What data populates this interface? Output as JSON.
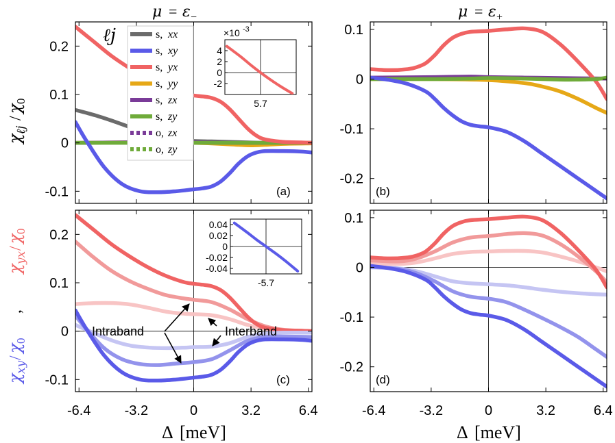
{
  "chart_data": [
    {
      "panel": "a",
      "type": "line",
      "title": "μ = ε₋",
      "panel_label": "(a)",
      "ylabel": "χℓj/χ0",
      "xlim": [
        -6.6,
        6.6
      ],
      "ylim": [
        -0.125,
        0.25
      ],
      "xticks": [
        "-6.4",
        "-3.2",
        "0",
        "3.2",
        "6.4"
      ],
      "xtick_values": [
        -6.4,
        -3.2,
        0,
        3.2,
        6.4
      ],
      "yticks": [
        "0.2",
        "0.1",
        "0",
        "-0.1"
      ],
      "ytick_values": [
        0.2,
        0.1,
        0,
        -0.1
      ],
      "legend_title": "ℓj",
      "legend": [
        {
          "name": "s, xx",
          "prefix": "s,",
          "suffix": "xx",
          "color": "#6b6b6b",
          "dash": false
        },
        {
          "name": "s, xy",
          "prefix": "s,",
          "suffix": "xy",
          "color": "#5a5ae8",
          "dash": false
        },
        {
          "name": "s, yx",
          "prefix": "s,",
          "suffix": "yx",
          "color": "#f06363",
          "dash": false
        },
        {
          "name": "s, yy",
          "prefix": "s,",
          "suffix": "yy",
          "color": "#e6a817",
          "dash": false
        },
        {
          "name": "s, zx",
          "prefix": "s,",
          "suffix": "zx",
          "color": "#7a3b98",
          "dash": false
        },
        {
          "name": "s, zy",
          "prefix": "s,",
          "suffix": "zy",
          "color": "#6fab3a",
          "dash": false
        },
        {
          "name": "o, zx",
          "prefix": "o,",
          "suffix": "zx",
          "color": "#7a3b98",
          "dash": true
        },
        {
          "name": "o, zy",
          "prefix": "o,",
          "suffix": "zy",
          "color": "#6fab3a",
          "dash": true
        }
      ],
      "series": [
        {
          "name": "s, xx",
          "color": "#6b6b6b",
          "x": [
            -6.6,
            -5.5,
            -4.5,
            -3.5,
            -2.5,
            -1.5,
            -0.5,
            0,
            1,
            2,
            3,
            4,
            5,
            6.6
          ],
          "y": [
            0.068,
            0.057,
            0.045,
            0.032,
            0.021,
            0.012,
            0.006,
            0.004,
            0.003,
            0.002,
            0.001,
            0.0,
            0.0,
            0.0
          ]
        },
        {
          "name": "s, yy",
          "color": "#e6a817",
          "x": [
            -6.6,
            -4,
            -2,
            0,
            1.5,
            2.5,
            3.2,
            4,
            5,
            6.6
          ],
          "y": [
            0.0,
            0.001,
            0.001,
            0.0,
            -0.002,
            -0.004,
            -0.005,
            -0.004,
            -0.002,
            -0.001
          ]
        },
        {
          "name": "s, zx",
          "color": "#7a3b98",
          "x": [
            -6.6,
            -4,
            -2,
            0,
            2,
            4,
            6.6
          ],
          "y": [
            0.0,
            0.001,
            0.002,
            0.001,
            0.0,
            0.0,
            0.0
          ]
        },
        {
          "name": "s, zy",
          "color": "#6fab3a",
          "x": [
            -6.6,
            -4,
            -2,
            0,
            2,
            4,
            6.6
          ],
          "y": [
            0.0,
            0.0,
            0.0,
            0.0,
            0.0,
            0.0,
            0.0
          ]
        },
        {
          "name": "s, yx",
          "color": "#f06363",
          "x": [
            -6.6,
            -5.6,
            -4.6,
            -3.6,
            -2.6,
            -1.6,
            -0.6,
            0,
            0.5,
            1,
            1.5,
            2,
            2.5,
            3,
            3.5,
            4,
            5,
            6,
            6.6
          ],
          "y": [
            0.24,
            0.21,
            0.18,
            0.155,
            0.133,
            0.115,
            0.102,
            0.098,
            0.096,
            0.093,
            0.085,
            0.07,
            0.05,
            0.03,
            0.015,
            0.007,
            0.002,
            0.001,
            0.0
          ]
        },
        {
          "name": "s, xy",
          "color": "#5a5ae8",
          "x": [
            -6.6,
            -6,
            -5,
            -4,
            -3,
            -2,
            -1,
            0,
            0.5,
            1,
            1.5,
            2,
            2.5,
            3,
            3.5,
            4,
            5,
            6,
            6.6
          ],
          "y": [
            0.043,
            0.005,
            -0.05,
            -0.085,
            -0.1,
            -0.102,
            -0.1,
            -0.096,
            -0.094,
            -0.09,
            -0.08,
            -0.063,
            -0.043,
            -0.028,
            -0.02,
            -0.017,
            -0.017,
            -0.018,
            -0.02
          ]
        }
      ],
      "inset": {
        "ytick_labels": [
          "4",
          "2",
          "0",
          "-2"
        ],
        "ytick_values": [
          4,
          2,
          0,
          -2
        ],
        "xtick_label": "5.7",
        "exponent": "×10",
        "exponent_power": "-3",
        "xlim": [
          5.52,
          5.88
        ],
        "ylim": [
          -4,
          6
        ],
        "x": [
          5.53,
          5.6,
          5.65,
          5.7,
          5.75,
          5.8,
          5.86
        ],
        "y": [
          4.8,
          2.9,
          1.4,
          0.0,
          -1.3,
          -2.5,
          -3.8
        ]
      }
    },
    {
      "panel": "b",
      "type": "line",
      "title": "μ = ε₊",
      "panel_label": "(b)",
      "xlim": [
        -6.6,
        6.6
      ],
      "ylim": [
        -0.25,
        0.115
      ],
      "xticks": [
        "-6.4",
        "-3.2",
        "0",
        "3.2",
        "6.4"
      ],
      "xtick_values": [
        -6.4,
        -3.2,
        0,
        3.2,
        6.4
      ],
      "yticks": [
        "0.1",
        "0",
        "-0.1",
        "-0.2"
      ],
      "ytick_values": [
        0.1,
        0,
        -0.1,
        -0.2
      ],
      "series": [
        {
          "name": "s, yy",
          "color": "#e6a817",
          "x": [
            -6.6,
            -3,
            0,
            2,
            3,
            4,
            5,
            6,
            6.6
          ],
          "y": [
            0.0,
            0.0,
            -0.002,
            -0.008,
            -0.015,
            -0.025,
            -0.04,
            -0.058,
            -0.068
          ]
        },
        {
          "name": "s, zx",
          "color": "#7a3b98",
          "x": [
            -6.6,
            -3,
            -1,
            0,
            2,
            4,
            6.6
          ],
          "y": [
            0.003,
            0.004,
            0.005,
            0.004,
            0.003,
            0.002,
            0.001
          ]
        },
        {
          "name": "s, yx",
          "color": "#f06363",
          "x": [
            -6.6,
            -5.5,
            -4.5,
            -4,
            -3.5,
            -3,
            -2.5,
            -2,
            -1.5,
            -1,
            0,
            1,
            2,
            3,
            4,
            5,
            6,
            6.6
          ],
          "y": [
            0.02,
            0.018,
            0.02,
            0.024,
            0.032,
            0.048,
            0.068,
            0.083,
            0.091,
            0.095,
            0.097,
            0.1,
            0.102,
            0.095,
            0.07,
            0.035,
            -0.005,
            -0.04
          ]
        },
        {
          "name": "s, zy",
          "color": "#6fab3a",
          "x": [
            -6.6,
            -3,
            -1,
            0,
            2,
            4,
            5,
            6,
            6.6
          ],
          "y": [
            0.0,
            0.0,
            0.001,
            0.002,
            0.001,
            -0.001,
            -0.001,
            0.0,
            0.003
          ]
        },
        {
          "name": "s, xy",
          "color": "#5a5ae8",
          "x": [
            -6.6,
            -5.5,
            -4.5,
            -3.5,
            -3,
            -2.5,
            -2,
            -1.5,
            -1,
            -0.5,
            0,
            1,
            2,
            3,
            4,
            5,
            6,
            6.6
          ],
          "y": [
            0.003,
            -0.002,
            -0.01,
            -0.025,
            -0.04,
            -0.058,
            -0.073,
            -0.085,
            -0.092,
            -0.095,
            -0.097,
            -0.106,
            -0.125,
            -0.15,
            -0.175,
            -0.2,
            -0.225,
            -0.24
          ]
        }
      ]
    },
    {
      "panel": "c",
      "type": "line",
      "panel_label": "(c)",
      "ylabel_red": "χyx/χ0",
      "ylabel_sep": ",",
      "ylabel_blue": "χxy/χ0",
      "xlabel": "Δ [meV]",
      "xlim": [
        -6.6,
        6.6
      ],
      "ylim": [
        -0.125,
        0.25
      ],
      "xticks": [
        "-6.4",
        "-3.2",
        "0",
        "3.2",
        "6.4"
      ],
      "xtick_values": [
        -6.4,
        -3.2,
        0,
        3.2,
        6.4
      ],
      "yticks": [
        "0.2",
        "0.1",
        "0",
        "-0.1"
      ],
      "ytick_values": [
        0.2,
        0.1,
        0,
        -0.1
      ],
      "annotations": [
        "Intraband",
        "Interband"
      ],
      "series": [
        {
          "name": "χyx interband",
          "color": "#f8c4c4",
          "x": [
            -6.6,
            -5.5,
            -4.5,
            -3.5,
            -2.5,
            -1.5,
            -0.5,
            0,
            1,
            2,
            3,
            4,
            5,
            6.6
          ],
          "y": [
            0.056,
            0.058,
            0.058,
            0.055,
            0.048,
            0.04,
            0.036,
            0.035,
            0.033,
            0.025,
            0.013,
            0.005,
            0.001,
            0.0
          ]
        },
        {
          "name": "χyx intraband",
          "color": "#f19a9a",
          "x": [
            -6.6,
            -5.6,
            -4.6,
            -3.6,
            -2.6,
            -1.6,
            -0.6,
            0,
            1,
            2,
            3,
            4,
            5,
            6.6
          ],
          "y": [
            0.185,
            0.153,
            0.125,
            0.104,
            0.088,
            0.075,
            0.068,
            0.065,
            0.06,
            0.045,
            0.025,
            0.01,
            0.003,
            0.0
          ]
        },
        {
          "name": "χyx total",
          "color": "#f06363",
          "x": [
            -6.6,
            -5.6,
            -4.6,
            -3.6,
            -2.6,
            -1.6,
            -0.6,
            0,
            0.5,
            1,
            1.5,
            2,
            2.5,
            3,
            3.5,
            4,
            5,
            6,
            6.6
          ],
          "y": [
            0.24,
            0.21,
            0.18,
            0.155,
            0.133,
            0.115,
            0.102,
            0.098,
            0.096,
            0.093,
            0.085,
            0.07,
            0.05,
            0.03,
            0.015,
            0.007,
            0.002,
            0.001,
            0.0
          ]
        },
        {
          "name": "χxy interband",
          "color": "#c5c5f3",
          "x": [
            -6.6,
            -5.5,
            -4.5,
            -3.5,
            -2.5,
            -1.5,
            -0.5,
            0,
            1,
            2,
            3,
            4,
            5,
            6.6
          ],
          "y": [
            0.013,
            -0.005,
            -0.02,
            -0.03,
            -0.034,
            -0.035,
            -0.034,
            -0.033,
            -0.032,
            -0.025,
            -0.012,
            -0.005,
            -0.003,
            -0.003
          ]
        },
        {
          "name": "χxy intraband",
          "color": "#9393ec",
          "x": [
            -6.6,
            -6,
            -5,
            -4,
            -3,
            -2,
            -1,
            0,
            1,
            2,
            3,
            4,
            5,
            6.6
          ],
          "y": [
            0.032,
            0.005,
            -0.035,
            -0.058,
            -0.068,
            -0.07,
            -0.067,
            -0.064,
            -0.058,
            -0.04,
            -0.02,
            -0.012,
            -0.011,
            -0.012
          ]
        },
        {
          "name": "χxy total",
          "color": "#5a5ae8",
          "x": [
            -6.6,
            -6,
            -5,
            -4,
            -3,
            -2,
            -1,
            0,
            0.5,
            1,
            1.5,
            2,
            2.5,
            3,
            3.5,
            4,
            5,
            6,
            6.6
          ],
          "y": [
            0.043,
            0.005,
            -0.05,
            -0.085,
            -0.1,
            -0.102,
            -0.1,
            -0.096,
            -0.094,
            -0.09,
            -0.08,
            -0.063,
            -0.043,
            -0.028,
            -0.02,
            -0.017,
            -0.017,
            -0.018,
            -0.02
          ]
        }
      ],
      "inset": {
        "ytick_labels": [
          "0.04",
          "0.02",
          "0",
          "-0.02",
          "-0.04"
        ],
        "ytick_values": [
          0.04,
          0.02,
          0,
          -0.02,
          -0.04
        ],
        "xtick_label": "-5.7",
        "xlim": [
          -5.88,
          -5.52
        ],
        "ylim": [
          -0.05,
          0.05
        ],
        "x": [
          -5.86,
          -5.8,
          -5.75,
          -5.7,
          -5.65,
          -5.6,
          -5.54
        ],
        "y": [
          0.043,
          0.027,
          0.013,
          0.0,
          -0.013,
          -0.027,
          -0.045
        ]
      }
    },
    {
      "panel": "d",
      "type": "line",
      "panel_label": "(d)",
      "xlabel": "Δ [meV]",
      "xlim": [
        -6.6,
        6.6
      ],
      "ylim": [
        -0.25,
        0.115
      ],
      "xticks": [
        "-6.4",
        "-3.2",
        "0",
        "3.2",
        "6.4"
      ],
      "xtick_values": [
        -6.4,
        -3.2,
        0,
        3.2,
        6.4
      ],
      "yticks": [
        "0.1",
        "0",
        "-0.1",
        "-0.2"
      ],
      "ytick_values": [
        0.1,
        0,
        -0.1,
        -0.2
      ],
      "series": [
        {
          "name": "χyx interband",
          "color": "#f8c4c4",
          "x": [
            -6.6,
            -5,
            -4,
            -3,
            -2,
            -1,
            0,
            1,
            2,
            3,
            4,
            5,
            6,
            6.6
          ],
          "y": [
            0.008,
            0.007,
            0.01,
            0.018,
            0.027,
            0.031,
            0.032,
            0.033,
            0.033,
            0.03,
            0.022,
            0.012,
            0.0,
            -0.008
          ]
        },
        {
          "name": "χyx intraband",
          "color": "#f19a9a",
          "x": [
            -6.6,
            -5,
            -4,
            -3,
            -2,
            -1,
            0,
            1,
            2,
            3,
            4,
            5,
            6,
            6.6
          ],
          "y": [
            0.014,
            0.012,
            0.018,
            0.032,
            0.05,
            0.06,
            0.063,
            0.067,
            0.069,
            0.064,
            0.047,
            0.022,
            -0.008,
            -0.03
          ]
        },
        {
          "name": "χyx total",
          "color": "#f06363",
          "x": [
            -6.6,
            -5.5,
            -4.5,
            -4,
            -3.5,
            -3,
            -2.5,
            -2,
            -1.5,
            -1,
            0,
            1,
            2,
            3,
            4,
            5,
            6,
            6.6
          ],
          "y": [
            0.02,
            0.018,
            0.02,
            0.024,
            0.032,
            0.048,
            0.068,
            0.083,
            0.091,
            0.095,
            0.097,
            0.1,
            0.102,
            0.095,
            0.07,
            0.035,
            -0.005,
            -0.04
          ]
        },
        {
          "name": "χxy interband",
          "color": "#c5c5f3",
          "x": [
            -6.6,
            -5,
            -4,
            -3,
            -2,
            -1,
            0,
            1,
            2,
            3,
            4,
            5,
            6,
            6.6
          ],
          "y": [
            0.0,
            -0.002,
            -0.008,
            -0.018,
            -0.028,
            -0.032,
            -0.034,
            -0.036,
            -0.04,
            -0.045,
            -0.049,
            -0.052,
            -0.054,
            -0.055
          ]
        },
        {
          "name": "χxy intraband",
          "color": "#9393ec",
          "x": [
            -6.6,
            -5,
            -4,
            -3,
            -2,
            -1,
            0,
            1,
            2,
            3,
            4,
            5,
            6,
            6.6
          ],
          "y": [
            0.001,
            -0.003,
            -0.012,
            -0.028,
            -0.048,
            -0.059,
            -0.063,
            -0.07,
            -0.085,
            -0.102,
            -0.12,
            -0.14,
            -0.165,
            -0.18
          ]
        },
        {
          "name": "χxy total",
          "color": "#5a5ae8",
          "x": [
            -6.6,
            -5.5,
            -4.5,
            -3.5,
            -3,
            -2.5,
            -2,
            -1.5,
            -1,
            -0.5,
            0,
            1,
            2,
            3,
            4,
            5,
            6,
            6.6
          ],
          "y": [
            0.003,
            -0.002,
            -0.01,
            -0.025,
            -0.04,
            -0.058,
            -0.073,
            -0.085,
            -0.092,
            -0.095,
            -0.097,
            -0.106,
            -0.125,
            -0.15,
            -0.175,
            -0.2,
            -0.225,
            -0.24
          ]
        }
      ]
    }
  ]
}
